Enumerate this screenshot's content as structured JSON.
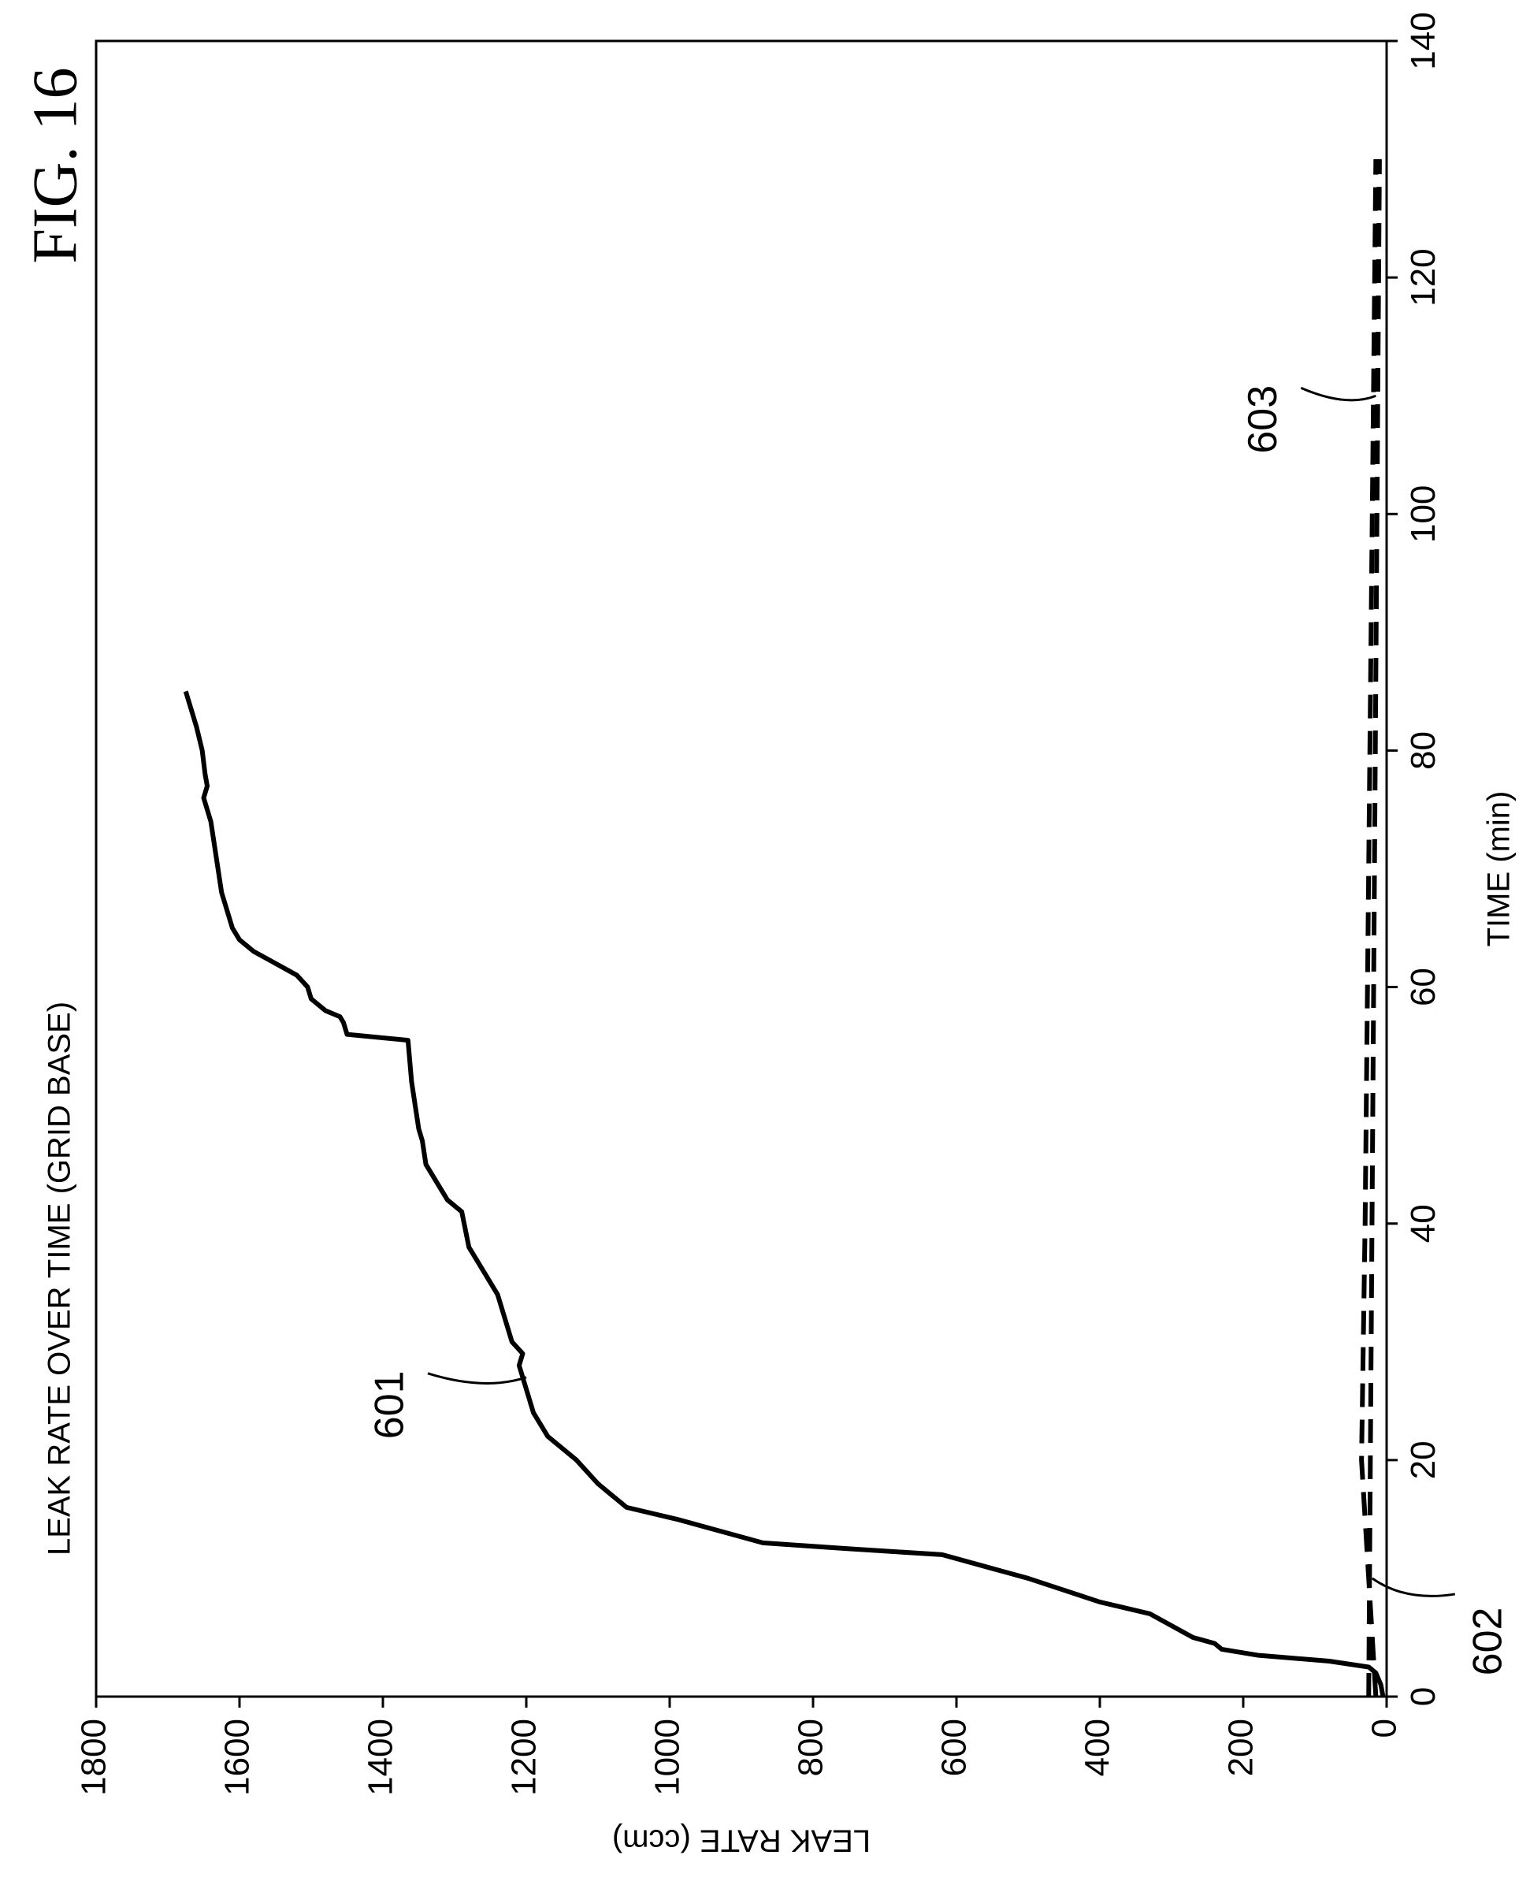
{
  "figure_label": "FIG. 16",
  "chart_data": {
    "type": "line",
    "title": "LEAK RATE OVER TIME (GRID BASE)",
    "xlabel": "TIME (min)",
    "ylabel": "LEAK RATE (ccm)",
    "xlim": [
      0,
      140
    ],
    "ylim": [
      0,
      1800
    ],
    "x_ticks": [
      0,
      20,
      40,
      60,
      80,
      100,
      120,
      140
    ],
    "y_ticks": [
      0,
      200,
      400,
      600,
      800,
      1000,
      1200,
      1400,
      1600,
      1800
    ],
    "grid": false,
    "series": [
      {
        "name": "601",
        "style": "solid",
        "points": [
          [
            0,
            5
          ],
          [
            1,
            8
          ],
          [
            2,
            15
          ],
          [
            2.5,
            25
          ],
          [
            3,
            80
          ],
          [
            3.5,
            180
          ],
          [
            4,
            230
          ],
          [
            4.5,
            240
          ],
          [
            5,
            270
          ],
          [
            5.5,
            285
          ],
          [
            6,
            300
          ],
          [
            7,
            330
          ],
          [
            8,
            400
          ],
          [
            9,
            450
          ],
          [
            10,
            500
          ],
          [
            11,
            560
          ],
          [
            12,
            620
          ],
          [
            12.5,
            750
          ],
          [
            13,
            870
          ],
          [
            14,
            930
          ],
          [
            15,
            990
          ],
          [
            16,
            1060
          ],
          [
            17,
            1080
          ],
          [
            18,
            1100
          ],
          [
            20,
            1130
          ],
          [
            22,
            1170
          ],
          [
            23,
            1180
          ],
          [
            24,
            1190
          ],
          [
            26,
            1200
          ],
          [
            28,
            1210
          ],
          [
            29,
            1205
          ],
          [
            30,
            1220
          ],
          [
            32,
            1230
          ],
          [
            34,
            1240
          ],
          [
            36,
            1260
          ],
          [
            38,
            1280
          ],
          [
            41,
            1290
          ],
          [
            42,
            1310
          ],
          [
            43,
            1320
          ],
          [
            44,
            1330
          ],
          [
            45,
            1340
          ],
          [
            47,
            1345
          ],
          [
            48,
            1350
          ],
          [
            50,
            1355
          ],
          [
            52,
            1360
          ],
          [
            55.5,
            1365
          ],
          [
            56,
            1450
          ],
          [
            57,
            1455
          ],
          [
            57.5,
            1460
          ],
          [
            58,
            1480
          ],
          [
            59,
            1500
          ],
          [
            60,
            1505
          ],
          [
            61,
            1520
          ],
          [
            62,
            1550
          ],
          [
            63,
            1580
          ],
          [
            64,
            1600
          ],
          [
            65,
            1610
          ],
          [
            66,
            1615
          ],
          [
            67,
            1620
          ],
          [
            68,
            1625
          ],
          [
            70,
            1630
          ],
          [
            72,
            1635
          ],
          [
            74,
            1640
          ],
          [
            75,
            1645
          ],
          [
            76,
            1650
          ],
          [
            77,
            1645
          ],
          [
            78,
            1648
          ],
          [
            80,
            1652
          ],
          [
            82,
            1660
          ],
          [
            85,
            1675
          ]
        ]
      },
      {
        "name": "602",
        "style": "dashed",
        "points": [
          [
            0,
            25
          ],
          [
            130,
            10
          ]
        ]
      },
      {
        "name": "603",
        "style": "dashed",
        "points": [
          [
            0,
            15
          ],
          [
            20,
            35
          ],
          [
            40,
            30
          ],
          [
            130,
            15
          ]
        ]
      }
    ],
    "annotations": [
      {
        "text": "601",
        "target": [
          27,
          1200
        ]
      },
      {
        "text": "602",
        "target": [
          10,
          20
        ]
      },
      {
        "text": "603",
        "target": [
          110,
          15
        ]
      }
    ]
  }
}
